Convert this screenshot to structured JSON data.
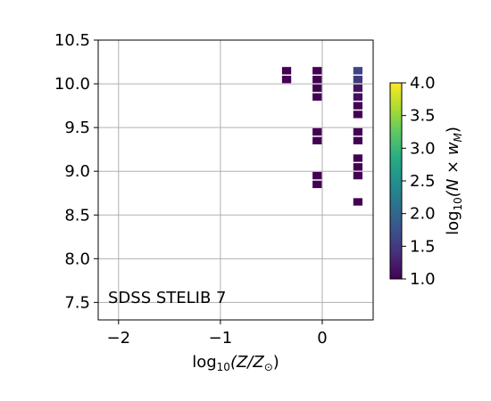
{
  "chart_data": {
    "type": "heatmap",
    "annotation": "SDSS STELIB 7",
    "xlabel_tex": {
      "prefix": "log",
      "sub": "10",
      "body": "(Z/Z",
      "sun_sub": "⊙",
      "suffix": ")"
    },
    "ylabel": "",
    "xlim": [
      -2.2,
      0.5
    ],
    "ylim": [
      7.3,
      10.5
    ],
    "x_ticks": [
      -2,
      -1,
      0
    ],
    "x_tick_labels": [
      "−2",
      "−1",
      "0"
    ],
    "y_ticks": [
      7.5,
      8.0,
      8.5,
      9.0,
      9.5,
      10.0,
      10.5
    ],
    "y_tick_labels": [
      "7.5",
      "8.0",
      "8.5",
      "9.0",
      "9.5",
      "10.0",
      "10.5"
    ],
    "grid": true,
    "colorbar": {
      "label_tex": {
        "prefix": "log",
        "sub": "10",
        "body": "(N × w",
        "msub": "M",
        "suffix": ")"
      },
      "range": [
        1.0,
        4.0
      ],
      "ticks": [
        1.0,
        1.5,
        2.0,
        2.5,
        3.0,
        3.5,
        4.0
      ],
      "tick_labels": [
        "1.0",
        "1.5",
        "2.0",
        "2.5",
        "3.0",
        "3.5",
        "4.0"
      ],
      "colormap": "viridis"
    },
    "cells": [
      {
        "x": -0.35,
        "y": 10.15,
        "value": 1.0
      },
      {
        "x": -0.35,
        "y": 10.05,
        "value": 1.0
      },
      {
        "x": -0.05,
        "y": 10.15,
        "value": 1.0
      },
      {
        "x": -0.05,
        "y": 10.05,
        "value": 1.0
      },
      {
        "x": -0.05,
        "y": 9.95,
        "value": 1.0
      },
      {
        "x": -0.05,
        "y": 9.85,
        "value": 1.0
      },
      {
        "x": -0.05,
        "y": 9.45,
        "value": 1.0
      },
      {
        "x": -0.05,
        "y": 9.35,
        "value": 1.0
      },
      {
        "x": -0.05,
        "y": 8.95,
        "value": 1.0
      },
      {
        "x": -0.05,
        "y": 8.85,
        "value": 1.0
      },
      {
        "x": 0.35,
        "y": 10.15,
        "value": 1.6
      },
      {
        "x": 0.35,
        "y": 10.05,
        "value": 1.5
      },
      {
        "x": 0.35,
        "y": 9.95,
        "value": 1.15
      },
      {
        "x": 0.35,
        "y": 9.85,
        "value": 1.1
      },
      {
        "x": 0.35,
        "y": 9.75,
        "value": 1.0
      },
      {
        "x": 0.35,
        "y": 9.65,
        "value": 1.0
      },
      {
        "x": 0.35,
        "y": 9.45,
        "value": 1.0
      },
      {
        "x": 0.35,
        "y": 9.35,
        "value": 1.0
      },
      {
        "x": 0.35,
        "y": 9.15,
        "value": 1.0
      },
      {
        "x": 0.35,
        "y": 9.05,
        "value": 1.0
      },
      {
        "x": 0.35,
        "y": 8.95,
        "value": 1.0
      },
      {
        "x": 0.35,
        "y": 8.65,
        "value": 1.0
      }
    ]
  }
}
